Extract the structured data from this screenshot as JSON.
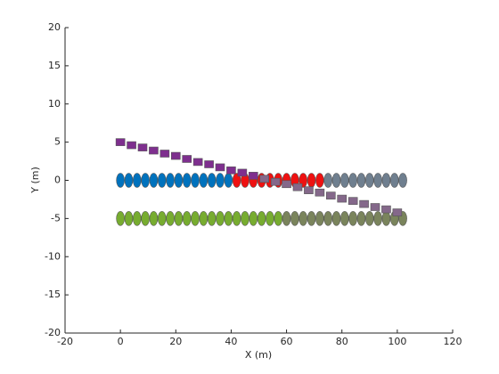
{
  "chart_data": {
    "type": "scatter",
    "xlabel": "X (m)",
    "ylabel": "Y (m)",
    "xlim": [
      -20,
      120
    ],
    "xticks": [
      -20,
      0,
      20,
      40,
      60,
      80,
      100,
      120
    ],
    "ylim": [
      -20,
      20
    ],
    "yticks": [
      -20,
      -15,
      -10,
      -5,
      0,
      5,
      10,
      15,
      20
    ],
    "series": [
      {
        "color": "#0072bd",
        "marker": "ellipse",
        "x": [
          0,
          3,
          6,
          9,
          12,
          15,
          18,
          21,
          24,
          27,
          30,
          33,
          36,
          39
        ],
        "y": [
          0,
          0,
          0,
          0,
          0,
          0,
          0,
          0,
          0,
          0,
          0,
          0,
          0,
          0
        ]
      },
      {
        "color": "#ee1111",
        "marker": "ellipse",
        "x": [
          42,
          45,
          48,
          51,
          54,
          57,
          60,
          63,
          66,
          69,
          72
        ],
        "y": [
          0,
          0,
          0,
          0,
          0,
          0,
          0,
          0,
          0,
          0,
          0
        ]
      },
      {
        "color": "#6f7f8f",
        "marker": "ellipse",
        "x": [
          75,
          78,
          81,
          84,
          87,
          90,
          93,
          96,
          99,
          102
        ],
        "y": [
          0,
          0,
          0,
          0,
          0,
          0,
          0,
          0,
          0,
          0
        ]
      },
      {
        "color": "#77ac30",
        "marker": "ellipse",
        "x": [
          0,
          3,
          6,
          9,
          12,
          15,
          18,
          21,
          24,
          27,
          30,
          33,
          36,
          39,
          42,
          45,
          48,
          51,
          54,
          57
        ],
        "y": [
          -5,
          -5,
          -5,
          -5,
          -5,
          -5,
          -5,
          -5,
          -5,
          -5,
          -5,
          -5,
          -5,
          -5,
          -5,
          -5,
          -5,
          -5,
          -5,
          -5
        ]
      },
      {
        "color": "#7a845c",
        "marker": "ellipse",
        "x": [
          60,
          63,
          66,
          69,
          72,
          75,
          78,
          81,
          84,
          87,
          90,
          93,
          96,
          99,
          102
        ],
        "y": [
          -5,
          -5,
          -5,
          -5,
          -5,
          -5,
          -5,
          -5,
          -5,
          -5,
          -5,
          -5,
          -5,
          -5,
          -5
        ]
      },
      {
        "color": "#7e2f8e",
        "marker": "square",
        "x": [
          0,
          4,
          8,
          12,
          16,
          20,
          24,
          28,
          32,
          36,
          40,
          44,
          48
        ],
        "y": [
          5.0,
          4.6,
          4.3,
          3.9,
          3.5,
          3.2,
          2.8,
          2.4,
          2.1,
          1.7,
          1.3,
          1.0,
          0.6
        ]
      },
      {
        "color": "#84688a",
        "marker": "square",
        "x": [
          52,
          56,
          60,
          64,
          68,
          72,
          76,
          80,
          84,
          88,
          92,
          96,
          100
        ],
        "y": [
          0.2,
          -0.2,
          -0.5,
          -0.9,
          -1.3,
          -1.6,
          -2.0,
          -2.4,
          -2.7,
          -3.1,
          -3.5,
          -3.8,
          -4.2
        ]
      }
    ]
  }
}
